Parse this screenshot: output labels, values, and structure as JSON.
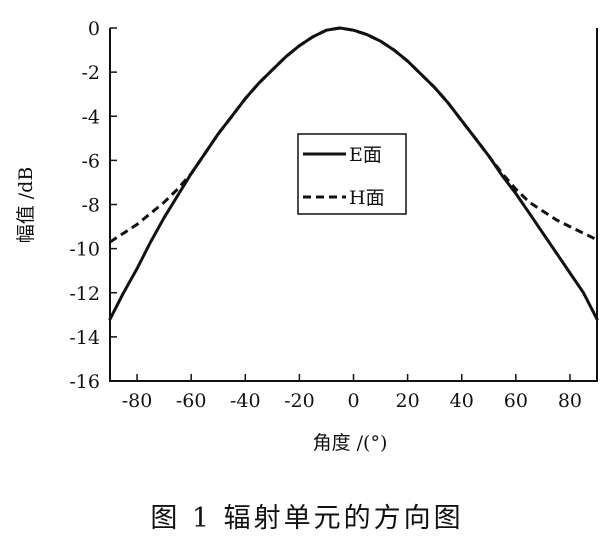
{
  "caption": "图 1   辐射单元的方向图",
  "chart_data": {
    "type": "line",
    "xlabel": "角度 /(°)",
    "ylabel": "幅值 /dB",
    "xlim": [
      -90,
      90
    ],
    "ylim": [
      -16,
      0
    ],
    "xticks": [
      -80,
      -60,
      -40,
      -20,
      0,
      20,
      40,
      60,
      80
    ],
    "yticks": [
      0,
      -2,
      -4,
      -6,
      -8,
      -10,
      -12,
      -14,
      -16
    ],
    "grid": false,
    "legend_position": "center-right",
    "series": [
      {
        "name": "E面",
        "style": "solid",
        "color": "#111111",
        "x": [
          -90,
          -85,
          -80,
          -75,
          -70,
          -65,
          -60,
          -55,
          -50,
          -45,
          -40,
          -35,
          -30,
          -25,
          -20,
          -15,
          -10,
          -5,
          0,
          5,
          10,
          15,
          20,
          25,
          30,
          35,
          40,
          45,
          50,
          55,
          60,
          65,
          70,
          75,
          80,
          85,
          90
        ],
        "y": [
          -13.2,
          -12.0,
          -10.9,
          -9.7,
          -8.6,
          -7.6,
          -6.6,
          -5.7,
          -4.8,
          -4.0,
          -3.2,
          -2.5,
          -1.9,
          -1.3,
          -0.8,
          -0.4,
          -0.1,
          0.0,
          -0.1,
          -0.3,
          -0.6,
          -1.0,
          -1.5,
          -2.1,
          -2.7,
          -3.4,
          -4.2,
          -5.0,
          -5.8,
          -6.7,
          -7.5,
          -8.4,
          -9.3,
          -10.2,
          -11.1,
          -12.0,
          -13.2
        ]
      },
      {
        "name": "H面",
        "style": "dashed",
        "color": "#111111",
        "x": [
          -90,
          -85,
          -80,
          -75,
          -70,
          -65,
          -60,
          -55,
          -50,
          -45,
          -40,
          -35,
          -30,
          -25,
          -20,
          -15,
          -10,
          -5,
          0,
          5,
          10,
          15,
          20,
          25,
          30,
          35,
          40,
          45,
          50,
          55,
          60,
          65,
          70,
          75,
          80,
          85,
          90
        ],
        "y": [
          -9.7,
          -9.3,
          -8.9,
          -8.4,
          -7.9,
          -7.3,
          -6.6,
          -5.7,
          -4.8,
          -4.0,
          -3.2,
          -2.5,
          -1.9,
          -1.3,
          -0.8,
          -0.4,
          -0.1,
          0.0,
          -0.1,
          -0.3,
          -0.6,
          -1.0,
          -1.5,
          -2.1,
          -2.7,
          -3.4,
          -4.2,
          -5.0,
          -5.8,
          -6.6,
          -7.3,
          -7.9,
          -8.3,
          -8.7,
          -9.0,
          -9.3,
          -9.6
        ]
      }
    ]
  }
}
